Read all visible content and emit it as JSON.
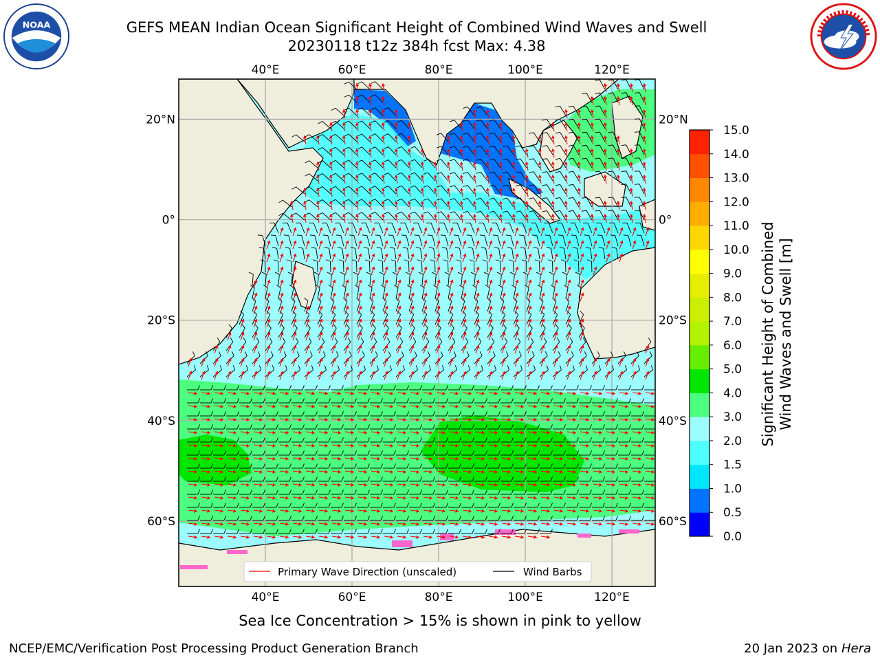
{
  "title": {
    "line1": "GEFS MEAN Indian Ocean Significant Height of Combined Wind Waves and Swell",
    "line2": "20230118 t12z 384h fcst   Max: 4.38"
  },
  "logos": {
    "left": "noaa-logo",
    "right": "national-weather-service-logo"
  },
  "map": {
    "lon_ticks": [
      "40°E",
      "60°E",
      "80°E",
      "100°E",
      "120°E"
    ],
    "lat_ticks": [
      "20°N",
      "0°",
      "20°S",
      "40°S",
      "60°S"
    ],
    "lon_values": [
      40,
      60,
      80,
      100,
      120
    ],
    "lat_values": [
      20,
      0,
      -20,
      -40,
      -60
    ],
    "extent": {
      "lon": [
        20,
        130
      ],
      "lat": [
        -73,
        28
      ]
    },
    "land_color": "#efeedd",
    "legend": {
      "wave": "Primary Wave Direction (unscaled)",
      "wind": "Wind Barbs"
    }
  },
  "colorbar": {
    "label_line1": "Significant Height of Combined",
    "label_line2": "Wind Waves and Swell [m]",
    "ticks": [
      "0.0",
      "0.5",
      "1.0",
      "1.5",
      "2.0",
      "3.0",
      "4.0",
      "5.0",
      "6.0",
      "7.0",
      "8.0",
      "9.0",
      "10.0",
      "11.0",
      "12.0",
      "13.0",
      "14.0",
      "15.0"
    ],
    "colors": [
      "#0000ff",
      "#0073ff",
      "#00e6ff",
      "#4dffff",
      "#9dfcfc",
      "#4dff80",
      "#00e600",
      "#66ee00",
      "#b3f200",
      "#ccee00",
      "#e6ee00",
      "#ffff00",
      "#ffd700",
      "#ffae00",
      "#ff8800",
      "#ff5000",
      "#ff2200"
    ]
  },
  "footer": {
    "note": "Sea Ice Concentration > 15% is shown in pink to yellow",
    "credit_left": "NCEP/EMC/Verification Post Processing Product Generation Branch",
    "date": "20 Jan 2023 on",
    "machine": "Hera"
  }
}
